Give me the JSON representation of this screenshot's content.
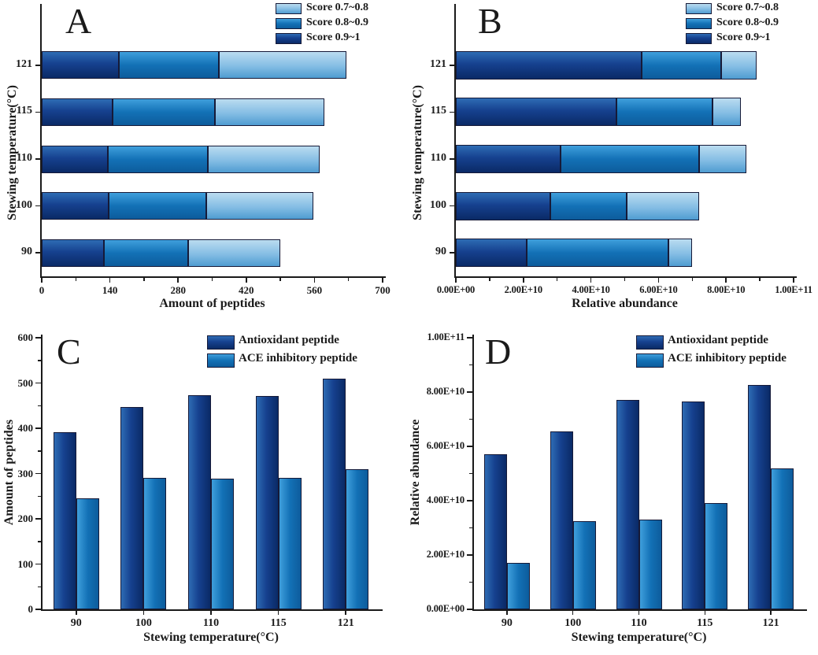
{
  "figure_title": "",
  "colors": {
    "dark": "#0a2a66",
    "mid": "#0d5c9c",
    "light": "#4f9cd1",
    "bar_border": "#161a38",
    "axis": "#1a1a1a"
  },
  "chart_data": [
    {
      "id": "A",
      "type": "bar",
      "orientation": "horizontal",
      "stacked": true,
      "panel_label": "A",
      "xlabel": "Amount of peptides",
      "ylabel": "Stewing temperature(°C)",
      "categories": [
        "90",
        "100",
        "110",
        "115",
        "121"
      ],
      "series": [
        {
          "name": "Score 0.9~1",
          "color": "dark",
          "values": [
            128,
            138,
            136,
            146,
            158
          ]
        },
        {
          "name": "Score 0.8~0.9",
          "color": "mid",
          "values": [
            172,
            200,
            205,
            210,
            205
          ]
        },
        {
          "name": "Score 0.7~0.8",
          "color": "light",
          "values": [
            190,
            220,
            230,
            224,
            262
          ]
        }
      ],
      "legend": [
        {
          "label": "Score 0.7~0.8",
          "color": "light"
        },
        {
          "label": "Score 0.8~0.9",
          "color": "mid"
        },
        {
          "label": "Score 0.9~1",
          "color": "dark"
        }
      ],
      "xlim": [
        0,
        700
      ],
      "ticks": [
        {
          "value": 0,
          "label": "0"
        },
        {
          "value": 140,
          "label": "140"
        },
        {
          "value": 280,
          "label": "280"
        },
        {
          "value": 420,
          "label": "420"
        },
        {
          "value": 560,
          "label": "560"
        },
        {
          "value": 700,
          "label": "700"
        }
      ],
      "grid": false,
      "legend_position": "top-right"
    },
    {
      "id": "B",
      "type": "bar",
      "orientation": "horizontal",
      "stacked": true,
      "panel_label": "B",
      "xlabel": "Relative abundance",
      "ylabel": "Stewing temperature(°C)",
      "categories": [
        "90",
        "100",
        "110",
        "115",
        "121"
      ],
      "series": [
        {
          "name": "Score 0.9~1",
          "color": "dark",
          "values": [
            21000000000.0,
            28000000000.0,
            31000000000.0,
            47500000000.0,
            55000000000.0
          ]
        },
        {
          "name": "Score 0.8~0.9",
          "color": "mid",
          "values": [
            42000000000.0,
            22500000000.0,
            41000000000.0,
            28500000000.0,
            23500000000.0
          ]
        },
        {
          "name": "Score 0.7~0.8",
          "color": "light",
          "values": [
            7000000000.0,
            21500000000.0,
            14000000000.0,
            8500000000.0,
            10500000000.0
          ]
        }
      ],
      "legend": [
        {
          "label": "Score 0.7~0.8",
          "color": "light"
        },
        {
          "label": "Score 0.8~0.9",
          "color": "mid"
        },
        {
          "label": "Score 0.9~1",
          "color": "dark"
        }
      ],
      "xlim": [
        0,
        100000000000.0
      ],
      "ticks": [
        {
          "value": 0,
          "label": "0.00E+00"
        },
        {
          "value": 20000000000.0,
          "label": "2.00E+10"
        },
        {
          "value": 40000000000.0,
          "label": "4.00E+10"
        },
        {
          "value": 60000000000.0,
          "label": "6.00E+10"
        },
        {
          "value": 80000000000.0,
          "label": "8.00E+10"
        },
        {
          "value": 100000000000.0,
          "label": "1.00E+11"
        }
      ],
      "grid": false,
      "legend_position": "top-right"
    },
    {
      "id": "C",
      "type": "bar",
      "orientation": "vertical",
      "stacked": false,
      "panel_label": "C",
      "xlabel": "Stewing temperature(°C)",
      "ylabel": "Amount of peptides",
      "categories": [
        "90",
        "100",
        "110",
        "115",
        "121"
      ],
      "series": [
        {
          "name": "Antioxidant peptide",
          "color": "dark",
          "values": [
            391,
            447,
            473,
            471,
            509
          ]
        },
        {
          "name": "ACE inhibitory peptide",
          "color": "mid",
          "values": [
            245,
            291,
            288,
            291,
            309
          ]
        }
      ],
      "legend": [
        {
          "label": "Antioxidant peptide",
          "color": "dark"
        },
        {
          "label": "ACE inhibitory peptide",
          "color": "mid"
        }
      ],
      "ylim": [
        0,
        600
      ],
      "ticks": [
        {
          "value": 0,
          "label": "0"
        },
        {
          "value": 100,
          "label": "100"
        },
        {
          "value": 200,
          "label": "200"
        },
        {
          "value": 300,
          "label": "300"
        },
        {
          "value": 400,
          "label": "400"
        },
        {
          "value": 500,
          "label": "500"
        },
        {
          "value": 600,
          "label": "600"
        }
      ],
      "grid": false,
      "legend_position": "top-right"
    },
    {
      "id": "D",
      "type": "bar",
      "orientation": "vertical",
      "stacked": false,
      "panel_label": "D",
      "xlabel": "Stewing temperature(°C)",
      "ylabel": "Relative abundance",
      "categories": [
        "90",
        "100",
        "110",
        "115",
        "121"
      ],
      "series": [
        {
          "name": "Antioxidant peptide",
          "color": "dark",
          "values": [
            57000000000.0,
            65500000000.0,
            77000000000.0,
            76500000000.0,
            82500000000.0
          ]
        },
        {
          "name": "ACE inhibitory peptide",
          "color": "mid",
          "values": [
            17000000000.0,
            32500000000.0,
            33000000000.0,
            39000000000.0,
            52000000000.0
          ]
        }
      ],
      "legend": [
        {
          "label": "Antioxidant peptide",
          "color": "dark"
        },
        {
          "label": "ACE inhibitory peptide",
          "color": "mid"
        }
      ],
      "ylim": [
        0,
        100000000000.0
      ],
      "ticks": [
        {
          "value": 0,
          "label": "0.00E+00"
        },
        {
          "value": 20000000000.0,
          "label": "2.00E+10"
        },
        {
          "value": 40000000000.0,
          "label": "4.00E+10"
        },
        {
          "value": 60000000000.0,
          "label": "6.00E+10"
        },
        {
          "value": 80000000000.0,
          "label": "8.00E+10"
        },
        {
          "value": 100000000000.0,
          "label": "1.00E+11"
        }
      ],
      "grid": false,
      "legend_position": "top-right"
    }
  ]
}
